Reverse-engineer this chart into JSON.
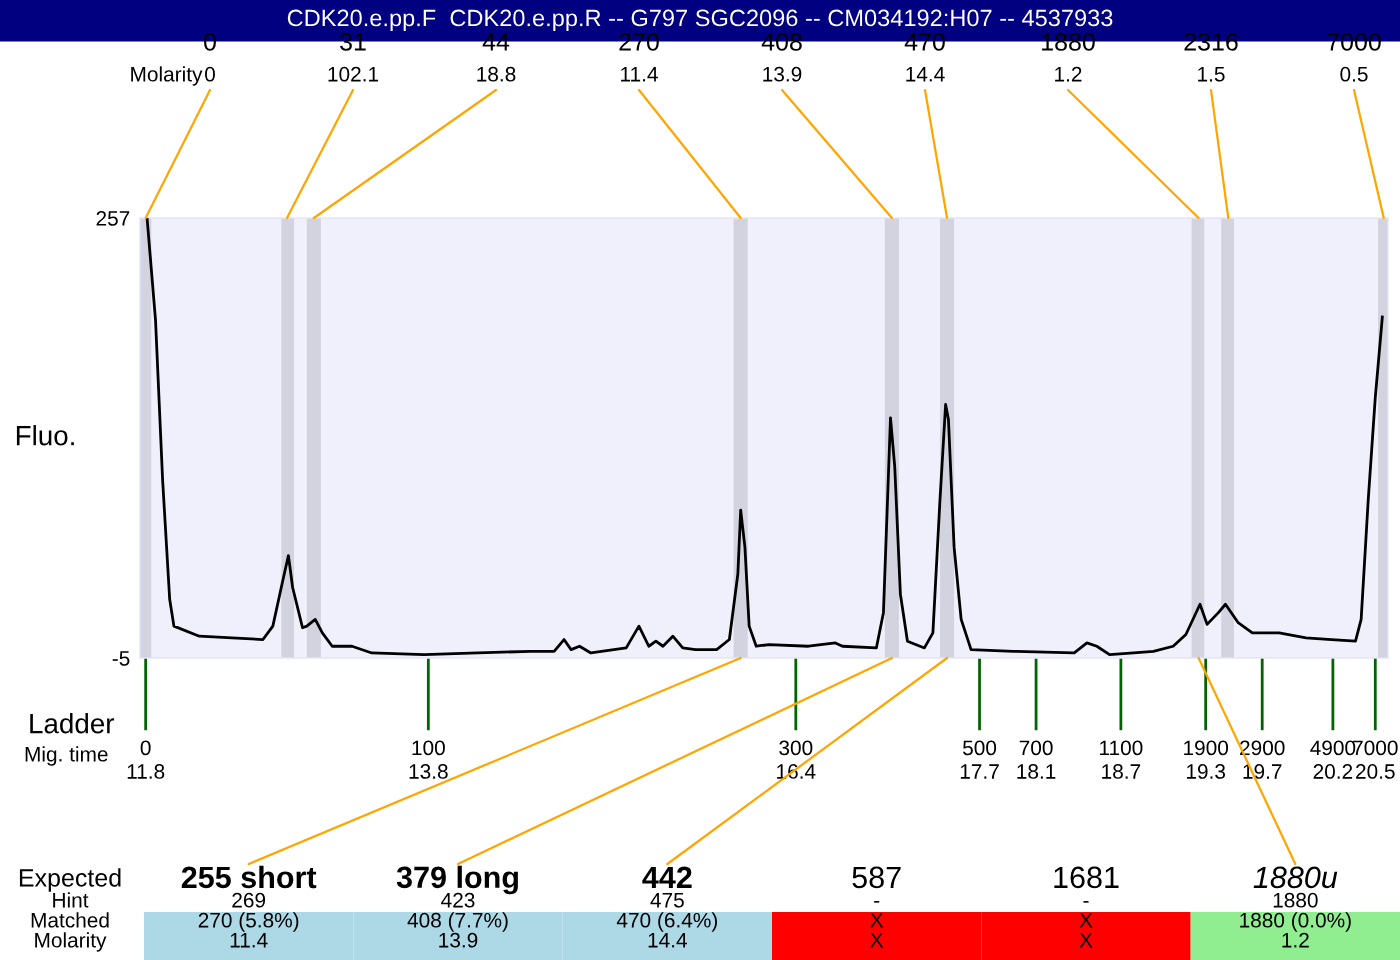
{
  "chart_data": {
    "type": "line",
    "title": "CDK20.e.pp.F  CDK20.e.pp.R -- G797 SGC2096 -- CM034192:H07 -- 4537933",
    "ylabel": "Fluo.",
    "xlim": [
      11.76,
      20.59
    ],
    "ylim": [
      -5,
      257
    ],
    "yticks": [
      257,
      -5
    ],
    "xticks": [
      11.8,
      13.8,
      16.4,
      17.7,
      18.1,
      18.7,
      19.3,
      19.7,
      20.2,
      20.5
    ],
    "grid": false,
    "legend": false,
    "marker": "none",
    "line_style": "solid",
    "series": [
      {
        "color": "#000000",
        "x": [
          11.81,
          11.87,
          11.92,
          11.97,
          12.0,
          12.18,
          12.41,
          12.63,
          12.7,
          12.77,
          12.81,
          12.84,
          12.91,
          12.94,
          13.0,
          13.05,
          13.12,
          13.26,
          13.4,
          13.77,
          14.15,
          14.52,
          14.69,
          14.76,
          14.81,
          14.87,
          14.95,
          15.2,
          15.29,
          15.36,
          15.41,
          15.46,
          15.53,
          15.6,
          15.69,
          15.84,
          15.93,
          15.99,
          16.01,
          16.04,
          16.07,
          16.12,
          16.21,
          16.49,
          16.68,
          16.73,
          16.97,
          17.02,
          17.07,
          17.1,
          17.14,
          17.19,
          17.31,
          17.37,
          17.42,
          17.46,
          17.48,
          17.52,
          17.57,
          17.64,
          17.94,
          18.37,
          18.46,
          18.53,
          18.62,
          18.79,
          18.93,
          19.07,
          19.16,
          19.26,
          19.31,
          19.39,
          19.44,
          19.53,
          19.63,
          19.82,
          20.01,
          20.19,
          20.36,
          20.4,
          20.45,
          20.5,
          20.55
        ],
        "values": [
          257,
          196,
          101,
          30,
          14,
          8,
          7,
          6,
          14,
          41,
          56,
          37,
          13,
          14,
          18,
          10,
          2,
          2,
          -2,
          -3,
          -2,
          -1,
          -1,
          6,
          0,
          2,
          -2,
          1,
          14,
          2,
          5,
          2,
          8,
          1,
          0,
          0,
          6,
          45,
          83,
          61,
          14,
          2,
          3,
          2,
          4,
          2,
          1,
          22,
          138,
          109,
          33,
          5,
          1,
          10,
          89,
          146,
          137,
          61,
          18,
          0,
          -1,
          -2,
          4,
          2,
          -3,
          -2,
          -1,
          2,
          9,
          27,
          15,
          22,
          27,
          16,
          10,
          10,
          7,
          6,
          5,
          18,
          89,
          150,
          198
        ]
      }
    ],
    "bands": [
      {
        "axis": "x",
        "from": 11.76,
        "to": 11.84,
        "color": "#d3d3e0"
      },
      {
        "axis": "x",
        "from": 12.76,
        "to": 12.85,
        "color": "#d3d3e0"
      },
      {
        "axis": "x",
        "from": 12.94,
        "to": 13.04,
        "color": "#d3d3e0"
      },
      {
        "axis": "x",
        "from": 15.96,
        "to": 16.06,
        "color": "#d3d3e0"
      },
      {
        "axis": "x",
        "from": 17.03,
        "to": 17.13,
        "color": "#d3d3e0"
      },
      {
        "axis": "x",
        "from": 17.42,
        "to": 17.52,
        "color": "#d3d3e0"
      },
      {
        "axis": "x",
        "from": 19.2,
        "to": 19.29,
        "color": "#d3d3e0"
      },
      {
        "axis": "x",
        "from": 19.41,
        "to": 19.5,
        "color": "#d3d3e0"
      },
      {
        "axis": "x",
        "from": 20.52,
        "to": 20.59,
        "color": "#d3d3e0"
      }
    ],
    "annotations": [
      "Molarity",
      {
        "text": "0\n0",
        "x": 11.8,
        "y": 257
      },
      {
        "text": "31\n102.1",
        "x": 12.8,
        "y": 257
      },
      {
        "text": "44\n18.8",
        "x": 12.99,
        "y": 257
      },
      {
        "text": "270\n11.4",
        "x": 16.01,
        "y": 257
      },
      {
        "text": "408\n13.9",
        "x": 17.08,
        "y": 257
      },
      {
        "text": "470\n14.4",
        "x": 17.47,
        "y": 257
      },
      {
        "text": "1880\n1.2",
        "x": 19.25,
        "y": 257
      },
      {
        "text": "2316\n1.5",
        "x": 19.46,
        "y": 257
      },
      {
        "text": "7000\n0.5",
        "x": 20.56,
        "y": 257
      },
      "Ladder\nMig. time",
      "0",
      "100",
      "300",
      "500",
      "700",
      "1100",
      "1900",
      "2900",
      "4900",
      "7000",
      "Expected\nHint\nMatched\nMolarity",
      {
        "text": "255 short\n269\n270 (5.8%)\n11.4",
        "x": 16.01,
        "y": -5
      },
      {
        "text": "379 long\n423\n408 (7.7%)\n13.9",
        "x": 17.08,
        "y": -5
      },
      {
        "text": "442\n475\n470 (6.4%)\n14.4",
        "x": 17.47,
        "y": -5
      },
      "587\n-\nX\nX",
      "1681\n-\nX\nX",
      {
        "text": "1880u\n1880\n1880 (0.0%)\n1.2",
        "x": 19.25,
        "y": -5
      }
    ]
  }
}
